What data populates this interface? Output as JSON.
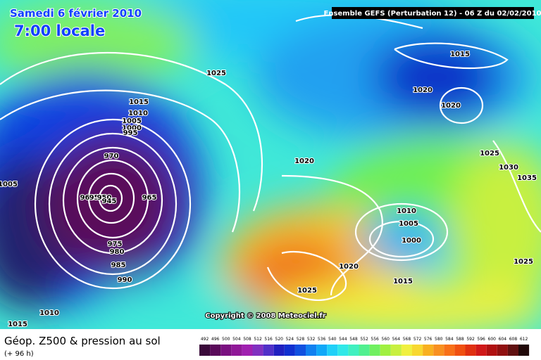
{
  "header": {
    "date": "Samedi 6 février 2010",
    "time": "7:00 locale",
    "run": "Ensemble GEFS (Perturbation 12)  -  06 Z du 02/02/2010"
  },
  "copyright": "Copyright © 2008 Meteociel.fr",
  "legend": {
    "title": "Géop. Z500 & pression au sol",
    "lead": "(+ 96 h)",
    "scale": [
      492,
      496,
      500,
      504,
      508,
      512,
      516,
      520,
      524,
      528,
      532,
      536,
      540,
      544,
      548,
      552,
      556,
      560,
      564,
      568,
      572,
      576,
      580,
      584,
      588,
      592,
      596,
      600,
      604,
      608,
      612
    ],
    "colors": [
      "#3a0a3a",
      "#5a0a5a",
      "#7a1080",
      "#901898",
      "#a020b0",
      "#8030c0",
      "#5030c8",
      "#2020c0",
      "#1030d0",
      "#1050e0",
      "#1080f0",
      "#10a8f8",
      "#20d0f8",
      "#30e8e8",
      "#40f0c0",
      "#50f090",
      "#70f060",
      "#a0f040",
      "#c8f040",
      "#f0f040",
      "#f8d830",
      "#f8b020",
      "#f89020",
      "#f87018",
      "#f05010",
      "#e03010",
      "#d01818",
      "#b01010",
      "#901010",
      "#601010",
      "#200808"
    ]
  },
  "isobars": [
    1025,
    1015,
    1010,
    1005,
    1000,
    995,
    970,
    1005,
    965,
    960,
    955,
    950,
    945,
    975,
    980,
    985,
    990,
    1010,
    1015,
    1015,
    1020,
    1020,
    1025,
    1030,
    1035,
    1020,
    1010,
    1005,
    1000,
    1020,
    1015,
    1025,
    1025
  ]
}
